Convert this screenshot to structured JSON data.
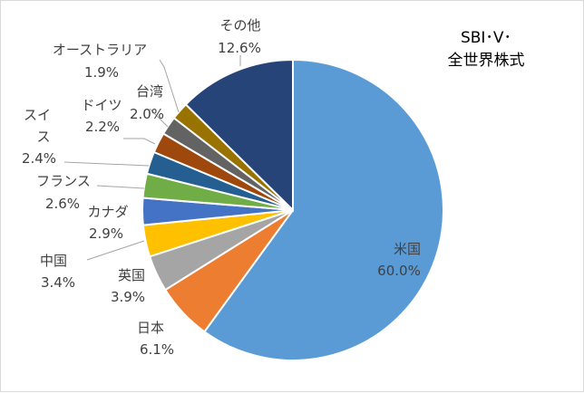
{
  "chart_data": {
    "type": "pie",
    "title_lines": [
      "SBI･V･",
      "全世界株式"
    ],
    "slices": [
      {
        "name": "米国",
        "value": 60.0,
        "label": "60.0%",
        "color": "#5b9bd5"
      },
      {
        "name": "日本",
        "value": 6.1,
        "label": "6.1%",
        "color": "#ed7d31"
      },
      {
        "name": "英国",
        "value": 3.9,
        "label": "3.9%",
        "color": "#a5a5a5"
      },
      {
        "name": "中国",
        "value": 3.4,
        "label": "3.4%",
        "color": "#ffc000"
      },
      {
        "name": "カナダ",
        "value": 2.9,
        "label": "2.9%",
        "color": "#4472c4"
      },
      {
        "name": "フランス",
        "value": 2.6,
        "label": "2.6%",
        "color": "#70ad47"
      },
      {
        "name": "スイス",
        "value": 2.4,
        "label": "2.4%",
        "color": "#255e91"
      },
      {
        "name": "ドイツ",
        "value": 2.2,
        "label": "2.2%",
        "color": "#9e480e"
      },
      {
        "name": "台湾",
        "value": 2.0,
        "label": "2.0%",
        "color": "#636363"
      },
      {
        "name": "オーストラリア",
        "value": 1.9,
        "label": "1.9%",
        "color": "#997300"
      },
      {
        "name": "その他",
        "value": 12.6,
        "label": "12.6%",
        "color": "#264478"
      }
    ]
  }
}
